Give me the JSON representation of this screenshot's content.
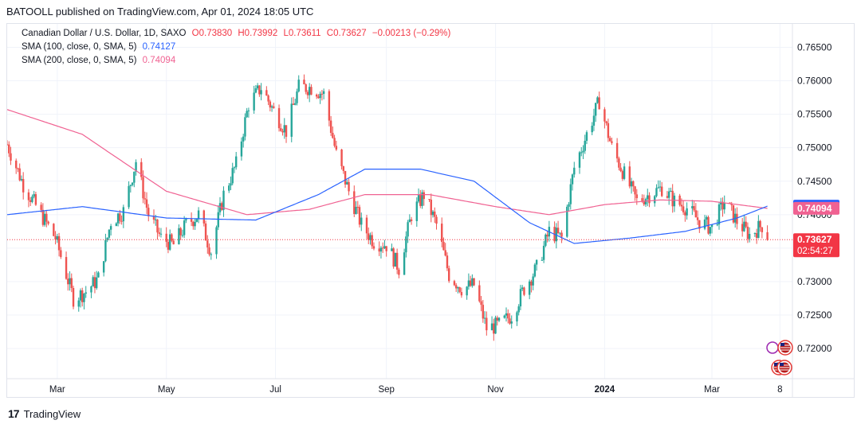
{
  "publisher_line": "BATOOLL published on TradingView.com, Apr 01, 2024 18:05 UTC",
  "legend": {
    "symbol": "Canadian Dollar / U.S. Dollar, 1D, SAXO",
    "open": "O0.73830",
    "high": "H0.73992",
    "low": "L0.73611",
    "close": "C0.73627",
    "change": "−0.00213 (−0.29%)",
    "sma100_label": "SMA (100, close, 0, SMA, 5)",
    "sma100_value": "0.74127",
    "sma200_label": "SMA (200, close, 0, SMA, 5)",
    "sma200_value": "0.74094"
  },
  "footer": {
    "brand": "TradingView",
    "logo": "17"
  },
  "colors": {
    "up": "#26a69a",
    "down": "#ef5350",
    "sma100": "#2962ff",
    "sma200": "#f06292",
    "price_label": "#f23645",
    "text": "#131722",
    "grid": "#f0f3fa"
  },
  "chart_data": {
    "type": "candlestick",
    "y_ticks": [
      "0.76500",
      "0.76000",
      "0.75500",
      "0.75000",
      "0.74500",
      "0.74000",
      "0.73500",
      "0.73000",
      "0.72500",
      "0.72000"
    ],
    "ylim": [
      0.7155,
      0.7685
    ],
    "x_labels": [
      {
        "label": "Mar",
        "date": "2023-03-01"
      },
      {
        "label": "May",
        "date": "2023-05-01"
      },
      {
        "label": "Jul",
        "date": "2023-07-01"
      },
      {
        "label": "Sep",
        "date": "2023-09-01"
      },
      {
        "label": "Nov",
        "date": "2023-11-01"
      },
      {
        "label": "2024",
        "date": "2024-01-01"
      },
      {
        "label": "Mar",
        "date": "2024-03-01"
      },
      {
        "label": "8",
        "date": "2024-04-08"
      }
    ],
    "x_range": [
      "2023-02-01",
      "2024-04-15"
    ],
    "price_label": {
      "value": "0.73627",
      "countdown": "02:54:27"
    },
    "sma100_label": "0.74127",
    "sma200_label": "0.74094",
    "close_anchors": [
      [
        "2023-02-01",
        0.7505
      ],
      [
        "2023-02-10",
        0.7445
      ],
      [
        "2023-02-20",
        0.74
      ],
      [
        "2023-02-28",
        0.7365
      ],
      [
        "2023-03-10",
        0.7275
      ],
      [
        "2023-03-17",
        0.7285
      ],
      [
        "2023-03-24",
        0.7305
      ],
      [
        "2023-03-31",
        0.739
      ],
      [
        "2023-04-07",
        0.7405
      ],
      [
        "2023-04-14",
        0.748
      ],
      [
        "2023-04-21",
        0.74
      ],
      [
        "2023-04-28",
        0.7365
      ],
      [
        "2023-05-05",
        0.7355
      ],
      [
        "2023-05-12",
        0.7385
      ],
      [
        "2023-05-19",
        0.74
      ],
      [
        "2023-05-26",
        0.7345
      ],
      [
        "2023-06-02",
        0.743
      ],
      [
        "2023-06-09",
        0.7475
      ],
      [
        "2023-06-16",
        0.7565
      ],
      [
        "2023-06-23",
        0.759
      ],
      [
        "2023-06-30",
        0.7555
      ],
      [
        "2023-07-07",
        0.7525
      ],
      [
        "2023-07-14",
        0.759
      ],
      [
        "2023-07-21",
        0.759
      ],
      [
        "2023-07-28",
        0.758
      ],
      [
        "2023-08-04",
        0.749
      ],
      [
        "2023-08-11",
        0.7435
      ],
      [
        "2023-08-18",
        0.7385
      ],
      [
        "2023-08-25",
        0.736
      ],
      [
        "2023-09-01",
        0.7355
      ],
      [
        "2023-09-08",
        0.732
      ],
      [
        "2023-09-15",
        0.74
      ],
      [
        "2023-09-22",
        0.743
      ],
      [
        "2023-09-29",
        0.7385
      ],
      [
        "2023-10-06",
        0.731
      ],
      [
        "2023-10-13",
        0.729
      ],
      [
        "2023-10-20",
        0.7295
      ],
      [
        "2023-10-27",
        0.723
      ],
      [
        "2023-11-03",
        0.7235
      ],
      [
        "2023-11-10",
        0.725
      ],
      [
        "2023-11-17",
        0.729
      ],
      [
        "2023-11-24",
        0.732
      ],
      [
        "2023-12-01",
        0.7375
      ],
      [
        "2023-12-08",
        0.7365
      ],
      [
        "2023-12-15",
        0.747
      ],
      [
        "2023-12-22",
        0.752
      ],
      [
        "2023-12-29",
        0.757
      ],
      [
        "2024-01-05",
        0.75
      ],
      [
        "2024-01-12",
        0.746
      ],
      [
        "2024-01-19",
        0.742
      ],
      [
        "2024-01-26",
        0.743
      ],
      [
        "2024-02-02",
        0.744
      ],
      [
        "2024-02-09",
        0.742
      ],
      [
        "2024-02-16",
        0.741
      ],
      [
        "2024-02-23",
        0.739
      ],
      [
        "2024-03-01",
        0.738
      ],
      [
        "2024-03-08",
        0.742
      ],
      [
        "2024-03-15",
        0.739
      ],
      [
        "2024-03-22",
        0.737
      ],
      [
        "2024-03-29",
        0.7384
      ],
      [
        "2024-04-01",
        0.73627
      ]
    ],
    "sma100_anchors": [
      [
        "2023-02-01",
        0.74
      ],
      [
        "2023-03-15",
        0.7412
      ],
      [
        "2023-05-01",
        0.7395
      ],
      [
        "2023-06-20",
        0.7392
      ],
      [
        "2023-07-25",
        0.743
      ],
      [
        "2023-08-20",
        0.7468
      ],
      [
        "2023-09-20",
        0.7468
      ],
      [
        "2023-10-20",
        0.745
      ],
      [
        "2023-11-20",
        0.7388
      ],
      [
        "2023-12-15",
        0.7357
      ],
      [
        "2024-01-15",
        0.7365
      ],
      [
        "2024-02-15",
        0.7375
      ],
      [
        "2024-03-15",
        0.7395
      ],
      [
        "2024-04-01",
        0.74127
      ]
    ],
    "sma200_anchors": [
      [
        "2023-02-01",
        0.7557
      ],
      [
        "2023-03-15",
        0.752
      ],
      [
        "2023-05-01",
        0.7435
      ],
      [
        "2023-06-15",
        0.74
      ],
      [
        "2023-07-20",
        0.7408
      ],
      [
        "2023-08-20",
        0.743
      ],
      [
        "2023-09-25",
        0.743
      ],
      [
        "2023-11-01",
        0.7412
      ],
      [
        "2023-12-01",
        0.74
      ],
      [
        "2024-01-01",
        0.7415
      ],
      [
        "2024-02-01",
        0.7422
      ],
      [
        "2024-03-01",
        0.742
      ],
      [
        "2024-04-01",
        0.74094
      ]
    ]
  }
}
